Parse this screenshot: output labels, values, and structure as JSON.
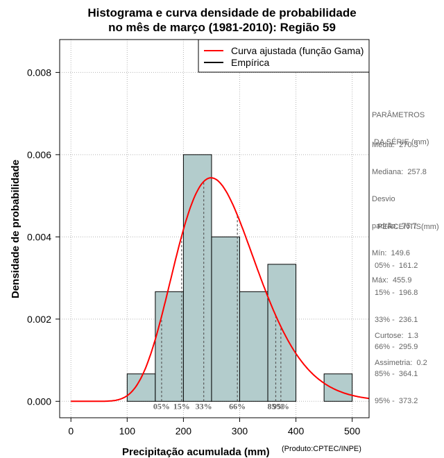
{
  "title_line1": "Histograma e curva densidade de probabilidade",
  "title_line2": "no mês de março (1981-2010): Região 59",
  "chart_data": {
    "type": "bar",
    "xlabel": "Precipitação acumulada (mm)",
    "ylabel": "Densidade de probabilidade",
    "xlim": [
      -20,
      530
    ],
    "ylim": [
      -0.0004,
      0.0088
    ],
    "xticks": [
      "0",
      "100",
      "200",
      "300",
      "400",
      "500"
    ],
    "xtick_values": [
      0,
      100,
      200,
      300,
      400,
      500
    ],
    "yticks": [
      "0.000",
      "0.002",
      "0.004",
      "0.006",
      "0.008"
    ],
    "ytick_values": [
      0,
      0.002,
      0.004,
      0.006,
      0.008
    ],
    "grid": true,
    "bins": [
      {
        "start": 100,
        "end": 150,
        "density": 0.000667
      },
      {
        "start": 150,
        "end": 200,
        "density": 0.002667
      },
      {
        "start": 200,
        "end": 250,
        "density": 0.006
      },
      {
        "start": 250,
        "end": 300,
        "density": 0.004
      },
      {
        "start": 300,
        "end": 350,
        "density": 0.002667
      },
      {
        "start": 350,
        "end": 400,
        "density": 0.003333
      },
      {
        "start": 400,
        "end": 450,
        "density": 0
      },
      {
        "start": 450,
        "end": 500,
        "density": 0.000667
      }
    ],
    "gamma_fit": {
      "shape": 12.7,
      "scale": 21.3
    },
    "percentile_lines": [
      {
        "label": "05%",
        "x": 161.2
      },
      {
        "label": "15%",
        "x": 196.8
      },
      {
        "label": "33%",
        "x": 236.1
      },
      {
        "label": "66%",
        "x": 295.9
      },
      {
        "label": "85%",
        "x": 364.1
      },
      {
        "label": "95%",
        "x": 373.2
      }
    ],
    "legend": [
      {
        "label": "Curva ajustada (função Gama)",
        "color": "#ff0000"
      },
      {
        "label": "Empírica",
        "color": "#000000"
      }
    ],
    "legend_position": "top-right",
    "colors": {
      "bar_fill": "#b3cccc",
      "curve": "#ff0000",
      "grid": "#b3b3b3",
      "percentile": "#555555"
    }
  },
  "params": {
    "heading_line1": "PARÂMETROS",
    "heading_line2": " DA SÉRIE (mm)",
    "rows": [
      "Média:  270.3",
      "Mediana:  257.8",
      "Desvio",
      "padrão:  75.7",
      "Mín:  149.6",
      "Máx:  455.9"
    ]
  },
  "percentis": {
    "heading": "PERCENTIS(mm)",
    "rows": [
      "05% -  161.2",
      "15% -  196.8",
      "33% -  236.1",
      "66% -  295.9",
      "85% -  364.1",
      "95% -  373.2"
    ]
  },
  "stats": {
    "rows": [
      "Curtose:  1.3",
      "Assimetria:  0.2"
    ]
  },
  "credit": "(Produto:CPTEC/INPE)"
}
